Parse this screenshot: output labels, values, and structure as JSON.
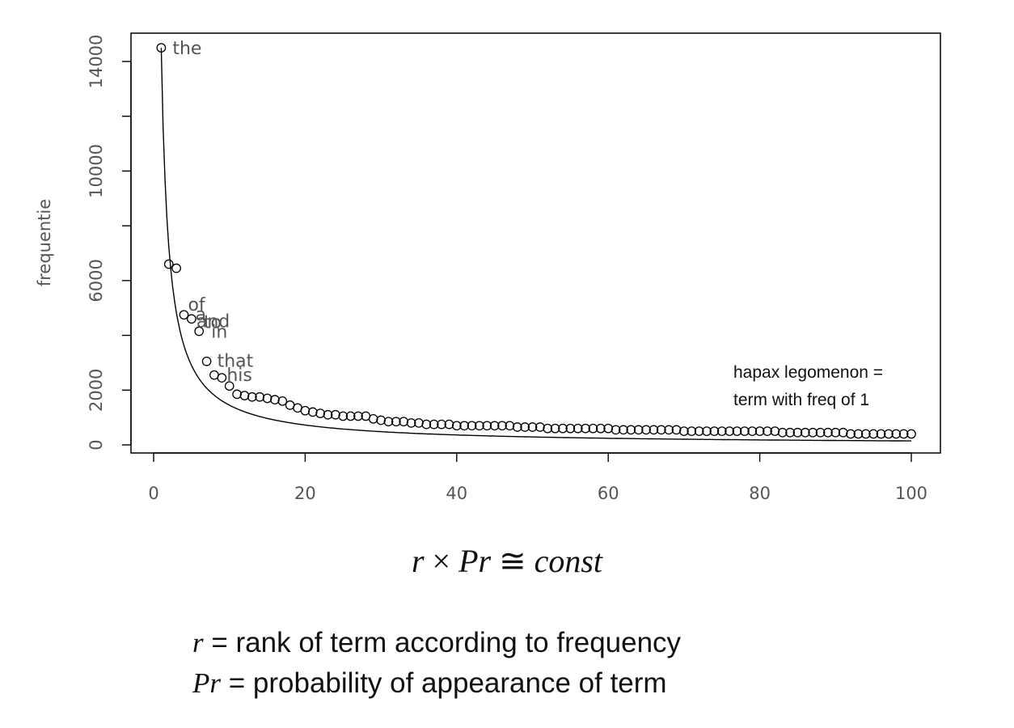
{
  "chart_data": {
    "type": "scatter",
    "ylabel": "frequentie",
    "xlim": [
      0,
      100
    ],
    "ylim": [
      0,
      14000
    ],
    "x_ticks": [
      0,
      20,
      40,
      60,
      80,
      100
    ],
    "y_ticks": [
      0,
      2000,
      6000,
      10000,
      14000
    ],
    "grid": false,
    "points": [
      14500,
      6600,
      6450,
      4750,
      4600,
      4150,
      3050,
      2550,
      2450,
      2150,
      1850,
      1800,
      1750,
      1750,
      1700,
      1650,
      1600,
      1450,
      1350,
      1250,
      1200,
      1150,
      1100,
      1100,
      1050,
      1050,
      1050,
      1050,
      950,
      900,
      850,
      850,
      850,
      800,
      800,
      750,
      750,
      750,
      750,
      700,
      700,
      700,
      700,
      700,
      700,
      700,
      700,
      650,
      650,
      650,
      650,
      600,
      600,
      600,
      600,
      600,
      600,
      600,
      600,
      600,
      550,
      550,
      550,
      550,
      550,
      550,
      550,
      550,
      550,
      500,
      500,
      500,
      500,
      500,
      500,
      500,
      500,
      500,
      500,
      500,
      500,
      500,
      450,
      450,
      450,
      450,
      450,
      450,
      450,
      450,
      450,
      400,
      400,
      400,
      400,
      400,
      400,
      400,
      400,
      400
    ],
    "point_labels": [
      {
        "rank": 1,
        "word": "the",
        "dx": 14,
        "dy": 8
      },
      {
        "rank": 4,
        "word": "of",
        "dx": 5,
        "dy": -5
      },
      {
        "rank": 5,
        "word": "and",
        "dx": 6,
        "dy": 10
      },
      {
        "rank": 4,
        "word": "a",
        "dx": 14,
        "dy": 7
      },
      {
        "rank": 5,
        "word": "to",
        "dx": 15,
        "dy": 11
      },
      {
        "rank": 6,
        "word": "in",
        "dx": 15,
        "dy": 8
      },
      {
        "rank": 7,
        "word": "that",
        "dx": 13,
        "dy": 7
      },
      {
        "rank": 9,
        "word": "his",
        "dx": 6,
        "dy": 4
      }
    ],
    "curve": {
      "type": "line",
      "constant": 14500
    },
    "annotation": [
      "hapax legomenon =",
      "term with freq of 1"
    ]
  },
  "formula": {
    "left": "r",
    "times": "×",
    "middle": "Pr",
    "approx": "≅",
    "right": "const"
  },
  "legend": {
    "r_symbol": "r",
    "r_text": " = rank of term according to frequency",
    "pr_symbol": "Pr",
    "pr_text": " = probability of appearance of term"
  }
}
